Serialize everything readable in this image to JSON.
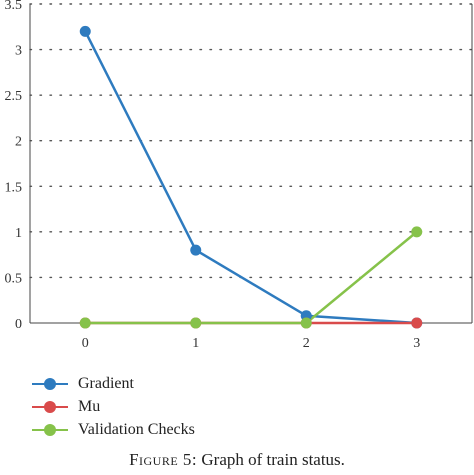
{
  "chart_data": {
    "type": "line",
    "x": [
      0,
      1,
      2,
      3
    ],
    "ylim": [
      0,
      3.5
    ],
    "xlim": [
      -0.5,
      3.5
    ],
    "y_ticks": [
      "0",
      "0.5",
      "1",
      "1.5",
      "2",
      "2.5",
      "3",
      "3.5"
    ],
    "y_tick_values": [
      0,
      0.5,
      1,
      1.5,
      2,
      2.5,
      3,
      3.5
    ],
    "x_ticks": [
      "0",
      "1",
      "2",
      "3"
    ],
    "grid": "horizontal dotted",
    "legend_placement": "bottom-left",
    "series": [
      {
        "name": "Gradient",
        "values": [
          3.2,
          0.8,
          0.08,
          0
        ],
        "color": "#2e7bbf"
      },
      {
        "name": "Mu",
        "values": [
          0,
          0,
          0,
          0
        ],
        "color": "#d94b4b"
      },
      {
        "name": "Validation Checks",
        "values": [
          0,
          0,
          0,
          1
        ],
        "color": "#86c24a"
      }
    ]
  },
  "caption": {
    "figure_label": "Figure 5:",
    "text": "Graph of train status."
  }
}
